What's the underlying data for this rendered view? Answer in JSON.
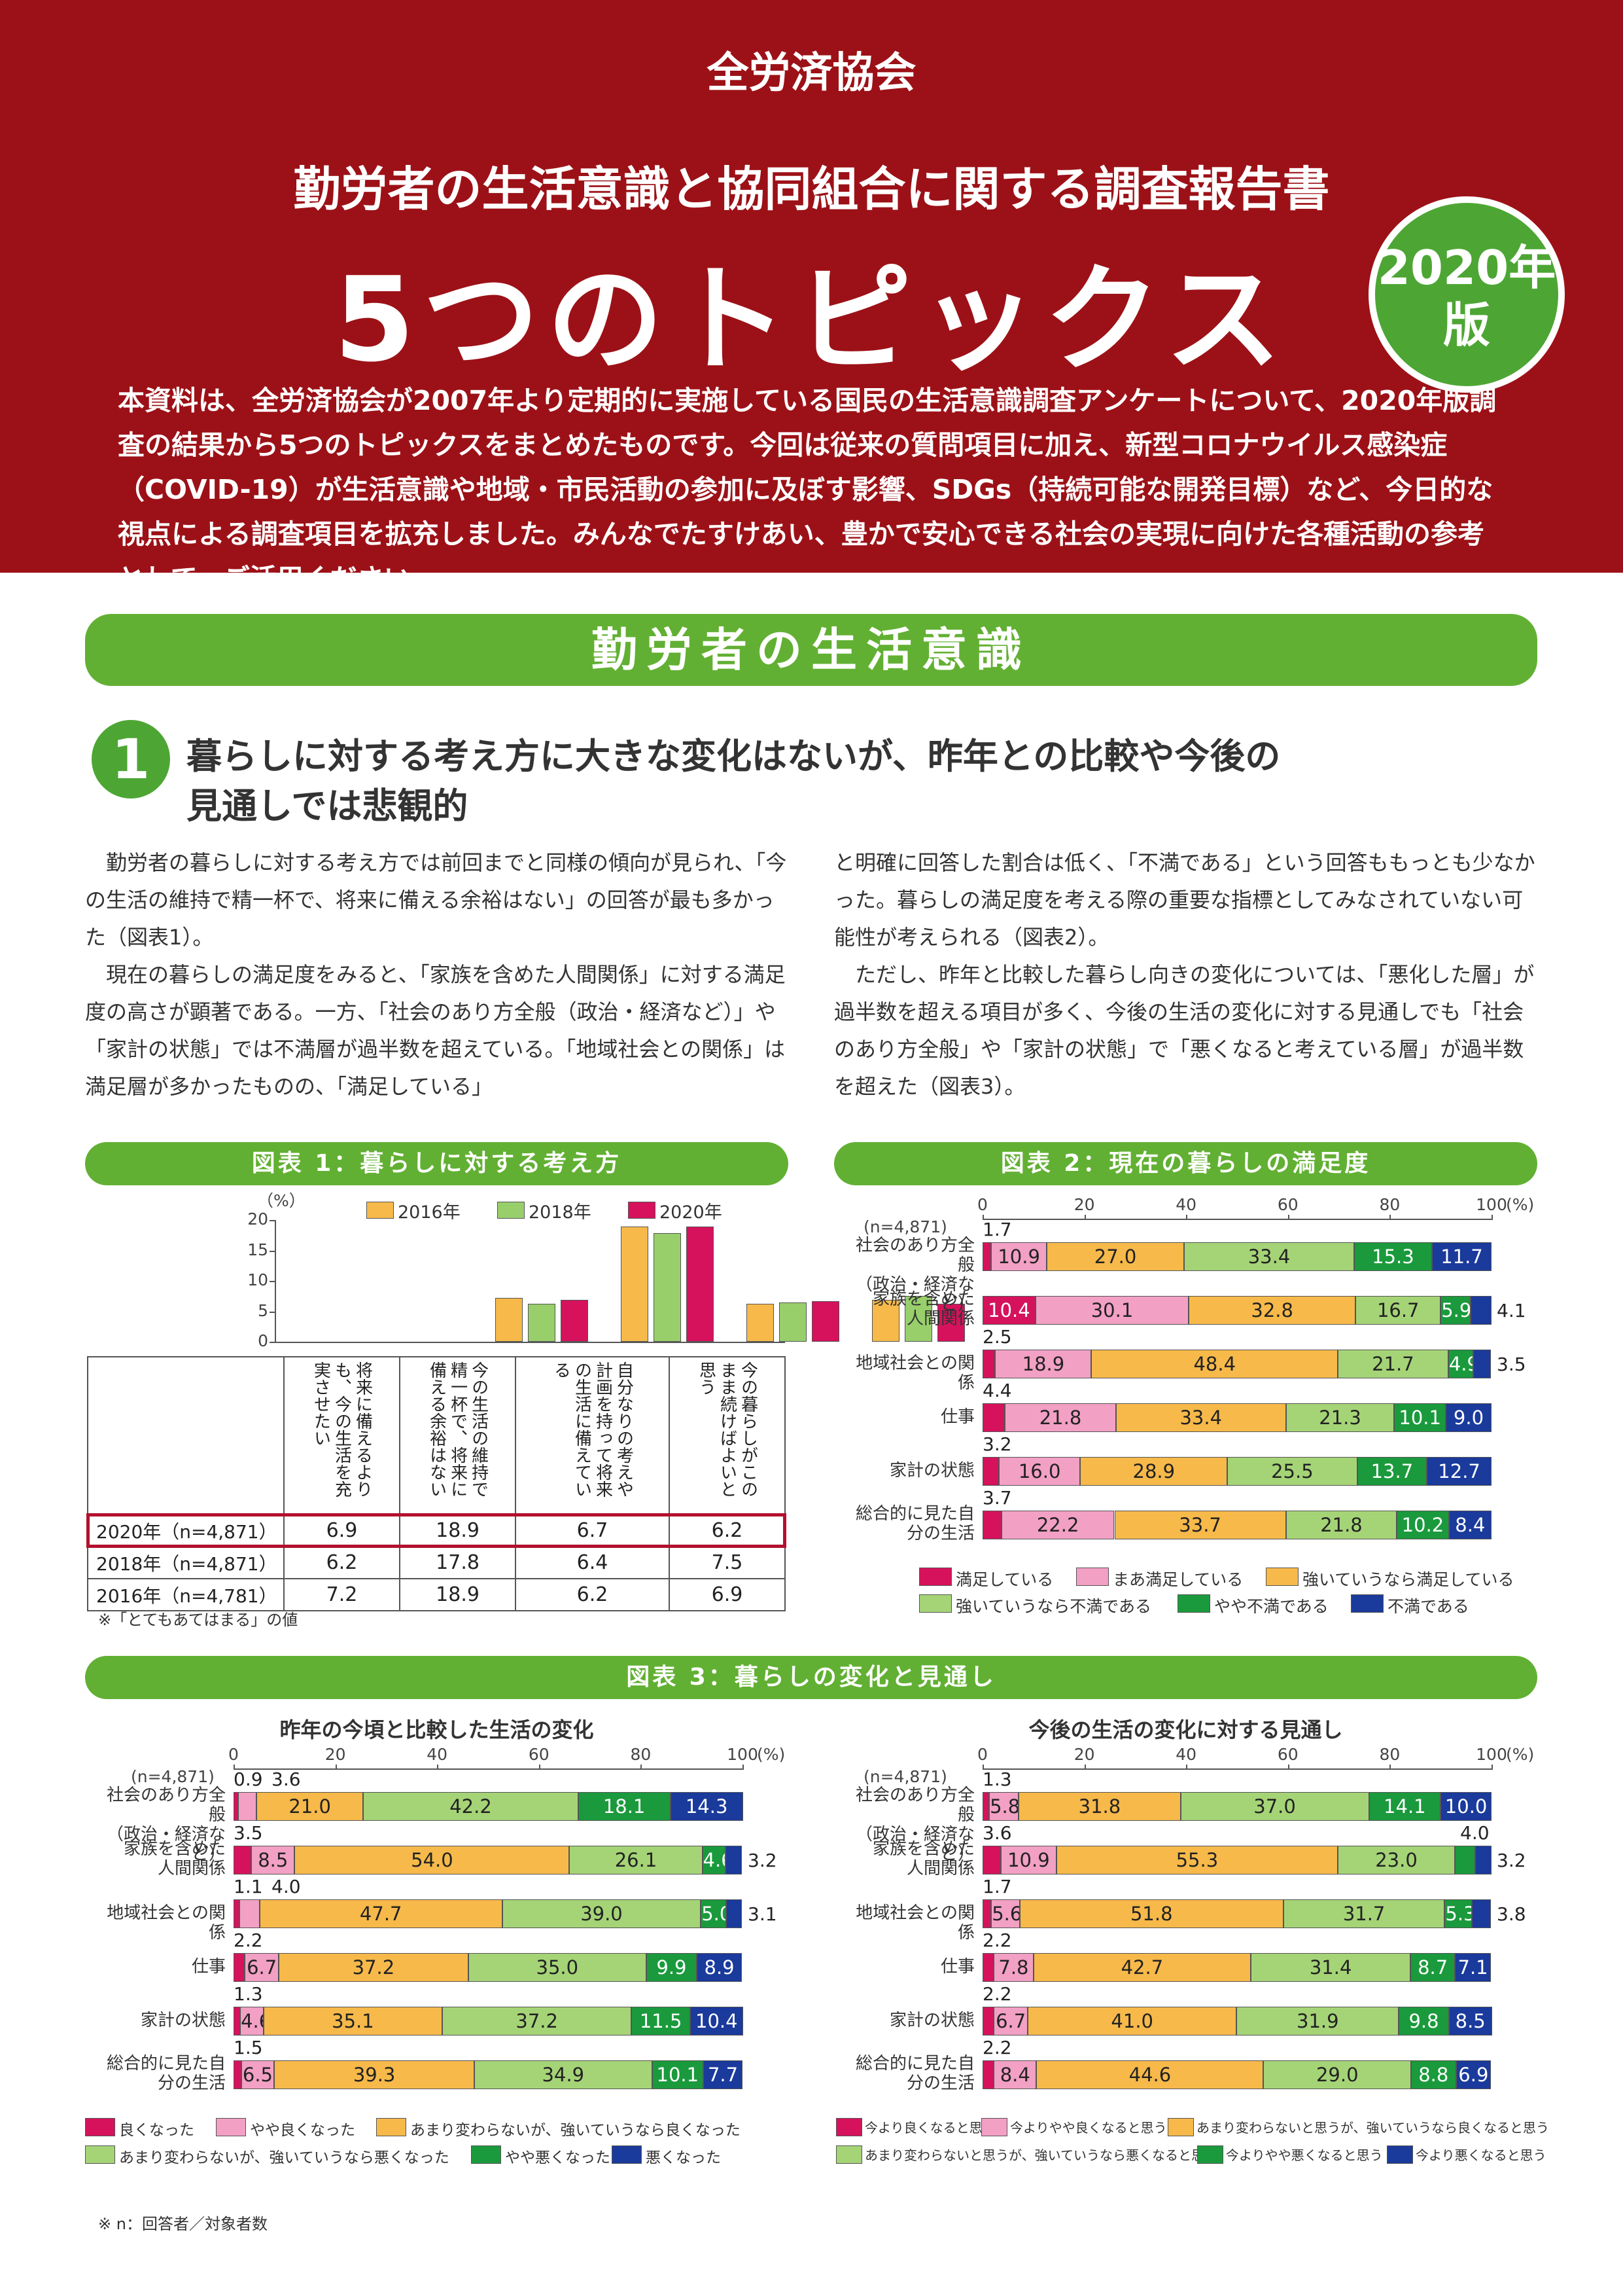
{
  "header": {
    "org": "全労済協会",
    "subtitle": "勤労者の生活意識と協同組合に関する調査報告書",
    "title": "5つのトピックス",
    "edition_line1": "2020年",
    "edition_line2": "版",
    "intro": "本資料は、全労済協会が2007年より定期的に実施している国民の生活意識調査アンケートについて、2020年版調査の結果から5つのトピックスをまとめたものです。今回は従来の質問項目に加え、新型コロナウイルス感染症（COVID-19）が生活意識や地域・市民活動の参加に及ぼす影響、SDGs（持続可能な開発目標）など、今日的な視点による調査項目を拡充しました。みんなでたすけあい、豊かで安心できる社会の実現に向けた各種活動の参考として、ご活用ください。"
  },
  "section": {
    "title": "勤労者の生活意識"
  },
  "topic": {
    "number": "1",
    "title_line1": "暮らしに対する考え方に大きな変化はないが、昨年との比較や今後の",
    "title_line2": "見通しでは悲観的"
  },
  "text": {
    "left_p1": "勤労者の暮らしに対する考え方では前回までと同様の傾向が見られ、「今の生活の維持で精一杯で、将来に備える余裕はない」の回答が最も多かった（図表1）。",
    "left_p2": "現在の暮らしの満足度をみると、「家族を含めた人間関係」に対する満足度の高さが顕著である。一方、「社会のあり方全般（政治・経済など）」や「家計の状態」では不満層が過半数を超えている。「地域社会との関係」は満足層が多かったものの、「満足している」",
    "right_p1": "と明確に回答した割合は低く、「不満である」という回答ももっとも少なかった。暮らしの満足度を考える際の重要な指標としてみなされていない可能性が考えられる（図表2）。",
    "right_p2": "ただし、昨年と比較した暮らし向きの変化については、「悪化した層」が過半数を超える項目が多く、今後の生活の変化に対する見通しでも「社会のあり方全般」や「家計の状態」で「悪くなると考えている層」が過半数を超えた（図表3）。"
  },
  "fig1": {
    "title": "図表 1：暮らしに対する考え方",
    "unit": "（%）",
    "note": "※「とてもあてはまる」の値",
    "legend": [
      "2016年",
      "2018年",
      "2020年"
    ],
    "colors": [
      "#f6b94a",
      "#98cf6b",
      "#d6125c"
    ],
    "yticks": [
      "20",
      "15",
      "10",
      "5",
      "0"
    ],
    "columns": [
      "将来に備えるよりも、今の生活を充実させたい",
      "今の生活の維持で精一杯で、将来に備える余裕はない",
      "自分なりの考えや計画を持って将来の生活に備えている",
      "今の暮らしがこのまま続けばよいと思う"
    ],
    "rows": [
      {
        "label": "2020年（n=4,871）",
        "values": [
          "6.9",
          "18.9",
          "6.7",
          "6.2"
        ]
      },
      {
        "label": "2018年（n=4,871）",
        "values": [
          "6.2",
          "17.8",
          "6.4",
          "7.5"
        ]
      },
      {
        "label": "2016年（n=4,781）",
        "values": [
          "7.2",
          "18.9",
          "6.2",
          "6.9"
        ]
      }
    ]
  },
  "chart_data": [
    {
      "type": "bar",
      "title": "図表 1：暮らしに対する考え方",
      "ylabel": "（%）",
      "ylim": [
        0,
        20
      ],
      "categories": [
        "将来に備えるよりも、今の生活を充実させたい",
        "今の生活の維持で精一杯で、将来に備える余裕はない",
        "自分なりの考えや計画を持って将来の生活に備えている",
        "今の暮らしがこのまま続けばよいと思う"
      ],
      "series": [
        {
          "name": "2016年",
          "values": [
            7.2,
            18.9,
            6.2,
            6.9
          ]
        },
        {
          "name": "2018年",
          "values": [
            6.2,
            17.8,
            6.4,
            7.5
          ]
        },
        {
          "name": "2020年",
          "values": [
            6.9,
            18.9,
            6.7,
            6.2
          ]
        }
      ]
    },
    {
      "type": "bar",
      "title": "図表 2：現在の暮らしの満足度",
      "n": "(n=4,871)",
      "xlim": [
        0,
        100
      ],
      "xticks": [
        "0",
        "20",
        "40",
        "60",
        "80",
        "100"
      ],
      "unit": "(%)",
      "legend": [
        "満足している",
        "まあ満足している",
        "強いていうなら満足している",
        "強いていうなら不満である",
        "やや不満である",
        "不満である"
      ],
      "colors": [
        "#d6125c",
        "#f2a0c4",
        "#f6b94a",
        "#a5d477",
        "#1a9a3c",
        "#1a3a9c"
      ],
      "rows": [
        {
          "label": "社会のあり方全般（政治・経済など）",
          "values": [
            1.7,
            10.9,
            27.0,
            33.4,
            15.3,
            11.7
          ]
        },
        {
          "label": "家族を含めた人間関係",
          "values": [
            10.4,
            30.1,
            32.8,
            16.7,
            5.9,
            4.1
          ]
        },
        {
          "label": "地域社会との関係",
          "values": [
            2.5,
            18.9,
            48.4,
            21.7,
            4.9,
            3.5
          ]
        },
        {
          "label": "仕事",
          "values": [
            4.4,
            21.8,
            33.4,
            21.3,
            10.1,
            9.0
          ]
        },
        {
          "label": "家計の状態",
          "values": [
            3.2,
            16.0,
            28.9,
            25.5,
            13.7,
            12.7
          ]
        },
        {
          "label": "総合的に見た自分の生活",
          "values": [
            3.7,
            22.2,
            33.7,
            21.8,
            10.2,
            8.4
          ]
        }
      ]
    },
    {
      "type": "bar",
      "title": "昨年の今頃と比較した生活の変化",
      "n": "(n=4,871)",
      "xlim": [
        0,
        100
      ],
      "xticks": [
        "0",
        "20",
        "40",
        "60",
        "80",
        "100"
      ],
      "unit": "(%)",
      "legend": [
        "良くなった",
        "やや良くなった",
        "あまり変わらないが、強いていうなら良くなった",
        "あまり変わらないが、強いていうなら悪くなった",
        "やや悪くなった",
        "悪くなった"
      ],
      "colors": [
        "#d6125c",
        "#f2a0c4",
        "#f6b94a",
        "#a5d477",
        "#1a9a3c",
        "#1a3a9c"
      ],
      "rows": [
        {
          "label": "社会のあり方全般（政治・経済など）",
          "values": [
            0.9,
            3.6,
            21.0,
            42.2,
            18.1,
            14.3
          ]
        },
        {
          "label": "家族を含めた人間関係",
          "values": [
            3.5,
            8.5,
            54.0,
            26.1,
            4.6,
            3.2
          ]
        },
        {
          "label": "地域社会との関係",
          "values": [
            1.1,
            4.0,
            47.7,
            39.0,
            5.0,
            3.1
          ]
        },
        {
          "label": "仕事",
          "values": [
            2.2,
            6.7,
            37.2,
            35.0,
            9.9,
            8.9
          ]
        },
        {
          "label": "家計の状態",
          "values": [
            1.3,
            4.6,
            35.1,
            37.2,
            11.5,
            10.4
          ]
        },
        {
          "label": "総合的に見た自分の生活",
          "values": [
            1.5,
            6.5,
            39.3,
            34.9,
            10.1,
            7.7
          ]
        }
      ]
    },
    {
      "type": "bar",
      "title": "今後の生活の変化に対する見通し",
      "n": "(n=4,871)",
      "xlim": [
        0,
        100
      ],
      "xticks": [
        "0",
        "20",
        "40",
        "60",
        "80",
        "100"
      ],
      "unit": "(%)",
      "legend": [
        "今より良くなると思う",
        "今よりやや良くなると思う",
        "あまり変わらないと思うが、強いていうなら良くなると思う",
        "あまり変わらないと思うが、強いていうなら悪くなると思う",
        "今よりやや悪くなると思う",
        "今より悪くなると思う"
      ],
      "colors": [
        "#d6125c",
        "#f2a0c4",
        "#f6b94a",
        "#a5d477",
        "#1a9a3c",
        "#1a3a9c"
      ],
      "rows": [
        {
          "label": "社会のあり方全般（政治・経済など）",
          "values": [
            1.3,
            5.8,
            31.8,
            37.0,
            14.1,
            10.0
          ]
        },
        {
          "label": "家族を含めた人間関係",
          "values": [
            3.6,
            10.9,
            55.3,
            23.0,
            4.0,
            3.2
          ]
        },
        {
          "label": "地域社会との関係",
          "values": [
            1.7,
            5.6,
            51.8,
            31.7,
            5.3,
            3.8
          ]
        },
        {
          "label": "仕事",
          "values": [
            2.2,
            7.8,
            42.7,
            31.4,
            8.7,
            7.1
          ]
        },
        {
          "label": "家計の状態",
          "values": [
            2.2,
            6.7,
            41.0,
            31.9,
            9.8,
            8.5
          ]
        },
        {
          "label": "総合的に見た自分の生活",
          "values": [
            2.2,
            8.4,
            44.6,
            29.0,
            8.8,
            6.9
          ]
        }
      ]
    }
  ],
  "fig2_title": "図表 2：現在の暮らしの満足度",
  "fig3": {
    "title": "図表 3：暮らしの変化と見通し",
    "left_title": "昨年の今頃と比較した生活の変化",
    "right_title": "今後の生活の変化に対する見通し"
  },
  "footnote": "※ n：回答者／対象者数"
}
